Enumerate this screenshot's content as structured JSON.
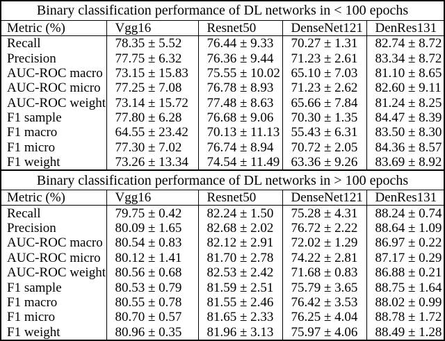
{
  "page": {
    "background": "#ffffff",
    "text_color": "#000000",
    "rule_color": "#000000"
  },
  "sections": [
    {
      "title": "Binary classification performance of DL networks in < 100 epochs",
      "header": [
        "Metric (%)",
        "Vgg16",
        "Resnet50",
        "DenseNet121",
        "DenRes131"
      ],
      "rows": [
        {
          "metric": "Recall",
          "values": [
            "78.35 ± 5.52",
            "76.44 ± 9.33",
            "70.27 ± 1.31",
            "82.74 ± 8.72"
          ]
        },
        {
          "metric": "Precision",
          "values": [
            "77.75 ± 6.32",
            "76.36 ± 9.44",
            "71.23 ± 2.61",
            "83.34 ± 8.72"
          ]
        },
        {
          "metric": "AUC-ROC macro",
          "values": [
            "73.15 ± 15.83",
            "75.55 ± 10.02",
            "65.10 ± 7.03",
            "81.10 ± 8.65"
          ]
        },
        {
          "metric": "AUC-ROC micro",
          "values": [
            "77.25 ± 7.08",
            "76.78 ± 8.93",
            "71.23 ± 2.62",
            "82.60 ± 9.11"
          ]
        },
        {
          "metric": "AUC-ROC weight",
          "values": [
            "73.14 ± 15.72",
            "77.48 ± 8.63",
            "65.66 ± 7.84",
            "81.24 ± 8.25"
          ]
        },
        {
          "metric": "F1 sample",
          "values": [
            "77.80 ± 6.28",
            "76.68 ± 9.06",
            "70.30 ± 1.35",
            "84.47 ± 8.39"
          ]
        },
        {
          "metric": "F1 macro",
          "values": [
            "64.55 ± 23.42",
            "70.13 ± 11.13",
            "55.43 ± 6.31",
            "83.50 ± 8.30"
          ]
        },
        {
          "metric": "F1 micro",
          "values": [
            "77.30 ± 7.02",
            "76.74 ± 8.94",
            "70.72 ± 2.05",
            "84.36 ± 8.57"
          ]
        },
        {
          "metric": "F1 weight",
          "values": [
            "73.26 ± 13.34",
            "74.54 ± 11.49",
            "63.36 ± 9.26",
            "83.69 ± 8.92"
          ]
        }
      ]
    },
    {
      "title": "Binary classification performance of DL networks in > 100 epochs",
      "header": [
        "Metric (%)",
        "Vgg16",
        "Resnet50",
        "DenseNet121",
        "DenRes131"
      ],
      "rows": [
        {
          "metric": "Recall",
          "values": [
            "79.75 ± 0.42",
            "82.24 ± 1.50",
            "75.28 ± 4.31",
            "88.24 ± 0.74"
          ]
        },
        {
          "metric": "Precision",
          "values": [
            "80.09 ± 1.65",
            "82.68 ± 2.02",
            "76.72 ± 2.22",
            "88.64 ± 1.09"
          ]
        },
        {
          "metric": "AUC-ROC macro",
          "values": [
            "80.54 ± 0.83",
            "82.12 ± 2.91",
            "72.02 ± 1.29",
            "86.97 ± 0.22"
          ]
        },
        {
          "metric": "AUC-ROC micro",
          "values": [
            "80.12 ± 1.41",
            "81.70 ± 2.78",
            "74.22 ± 2.81",
            "87.17 ± 0.29"
          ]
        },
        {
          "metric": "AUC-ROC weight",
          "values": [
            "80.56 ± 0.68",
            "82.53 ± 2.42",
            "71.68 ± 0.83",
            "86.88 ± 0.21"
          ]
        },
        {
          "metric": "F1 sample",
          "values": [
            "80.53 ± 0.79",
            "81.59 ± 2.51",
            "75.79 ± 3.65",
            "88.75 ± 1.64"
          ]
        },
        {
          "metric": "F1 macro",
          "values": [
            "80.55 ± 0.78",
            "81.55 ± 2.46",
            "76.42 ± 3.53",
            "88.02 ± 0.99"
          ]
        },
        {
          "metric": "F1 micro",
          "values": [
            "80.70 ± 0.57",
            "81.65 ± 2.33",
            "76.25 ± 4.04",
            "88.78 ± 1.72"
          ]
        },
        {
          "metric": "F1 weight",
          "values": [
            "80.96 ± 0.35",
            "81.96 ± 3.13",
            "75.97 ± 4.06",
            "88.49 ± 1.28"
          ]
        }
      ]
    }
  ]
}
